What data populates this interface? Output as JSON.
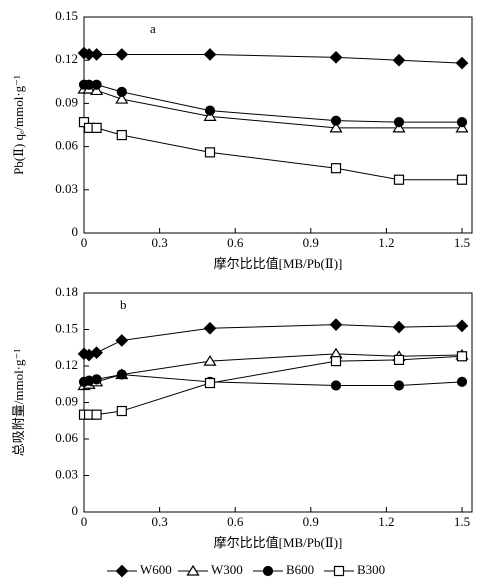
{
  "chart_data": [
    {
      "type": "line",
      "label": "a",
      "ylabel": "Pb(Ⅱ) qₑ/mmol·g⁻¹",
      "xlabel": "摩尔比比值[MB/Pb(Ⅱ)]",
      "x": [
        0,
        0.02,
        0.05,
        0.15,
        0.5,
        1.0,
        1.25,
        1.5
      ],
      "xlim": [
        0,
        1.5
      ],
      "xticks": [
        0,
        0.3,
        0.6,
        0.9,
        1.2,
        1.5
      ],
      "ylim": [
        0,
        0.15
      ],
      "yticks": [
        0,
        0.03,
        0.06,
        0.09,
        0.12,
        0.15
      ],
      "series": [
        {
          "name": "W600",
          "color": "#000000",
          "marker": "diamond",
          "filled": true,
          "values": [
            0.125,
            0.124,
            0.124,
            0.124,
            0.124,
            0.122,
            0.12,
            0.118
          ]
        },
        {
          "name": "W300",
          "color": "#000000",
          "marker": "triangle",
          "filled": false,
          "values": [
            0.1,
            0.1,
            0.099,
            0.093,
            0.081,
            0.073,
            0.073,
            0.073
          ]
        },
        {
          "name": "B600",
          "color": "#000000",
          "marker": "circle",
          "filled": true,
          "values": [
            0.103,
            0.103,
            0.103,
            0.098,
            0.085,
            0.078,
            0.077,
            0.077
          ]
        },
        {
          "name": "B300",
          "color": "#000000",
          "marker": "square",
          "filled": false,
          "values": [
            0.077,
            0.073,
            0.073,
            0.068,
            0.056,
            0.045,
            0.037,
            0.037
          ]
        }
      ]
    },
    {
      "type": "line",
      "label": "b",
      "ylabel": "总吸附量/mmol·g⁻¹",
      "xlabel": "摩尔比比值[MB/Pb(Ⅱ)]",
      "x": [
        0,
        0.02,
        0.05,
        0.15,
        0.5,
        1.0,
        1.25,
        1.5
      ],
      "xlim": [
        0,
        1.5
      ],
      "xticks": [
        0,
        0.3,
        0.6,
        0.9,
        1.2,
        1.5
      ],
      "ylim": [
        0,
        0.18
      ],
      "yticks": [
        0,
        0.03,
        0.06,
        0.09,
        0.12,
        0.15,
        0.18
      ],
      "legend": "bottom",
      "series": [
        {
          "name": "W600",
          "color": "#000000",
          "marker": "diamond",
          "filled": true,
          "values": [
            0.13,
            0.129,
            0.131,
            0.141,
            0.151,
            0.154,
            0.152,
            0.153
          ]
        },
        {
          "name": "W300",
          "color": "#000000",
          "marker": "triangle",
          "filled": false,
          "values": [
            0.104,
            0.105,
            0.107,
            0.113,
            0.124,
            0.13,
            0.128,
            0.129
          ]
        },
        {
          "name": "B600",
          "color": "#000000",
          "marker": "circle",
          "filled": true,
          "values": [
            0.107,
            0.108,
            0.109,
            0.113,
            0.107,
            0.104,
            0.104,
            0.107
          ]
        },
        {
          "name": "B300",
          "color": "#000000",
          "marker": "square",
          "filled": false,
          "values": [
            0.08,
            0.08,
            0.08,
            0.083,
            0.106,
            0.124,
            0.125,
            0.128
          ]
        }
      ]
    }
  ]
}
